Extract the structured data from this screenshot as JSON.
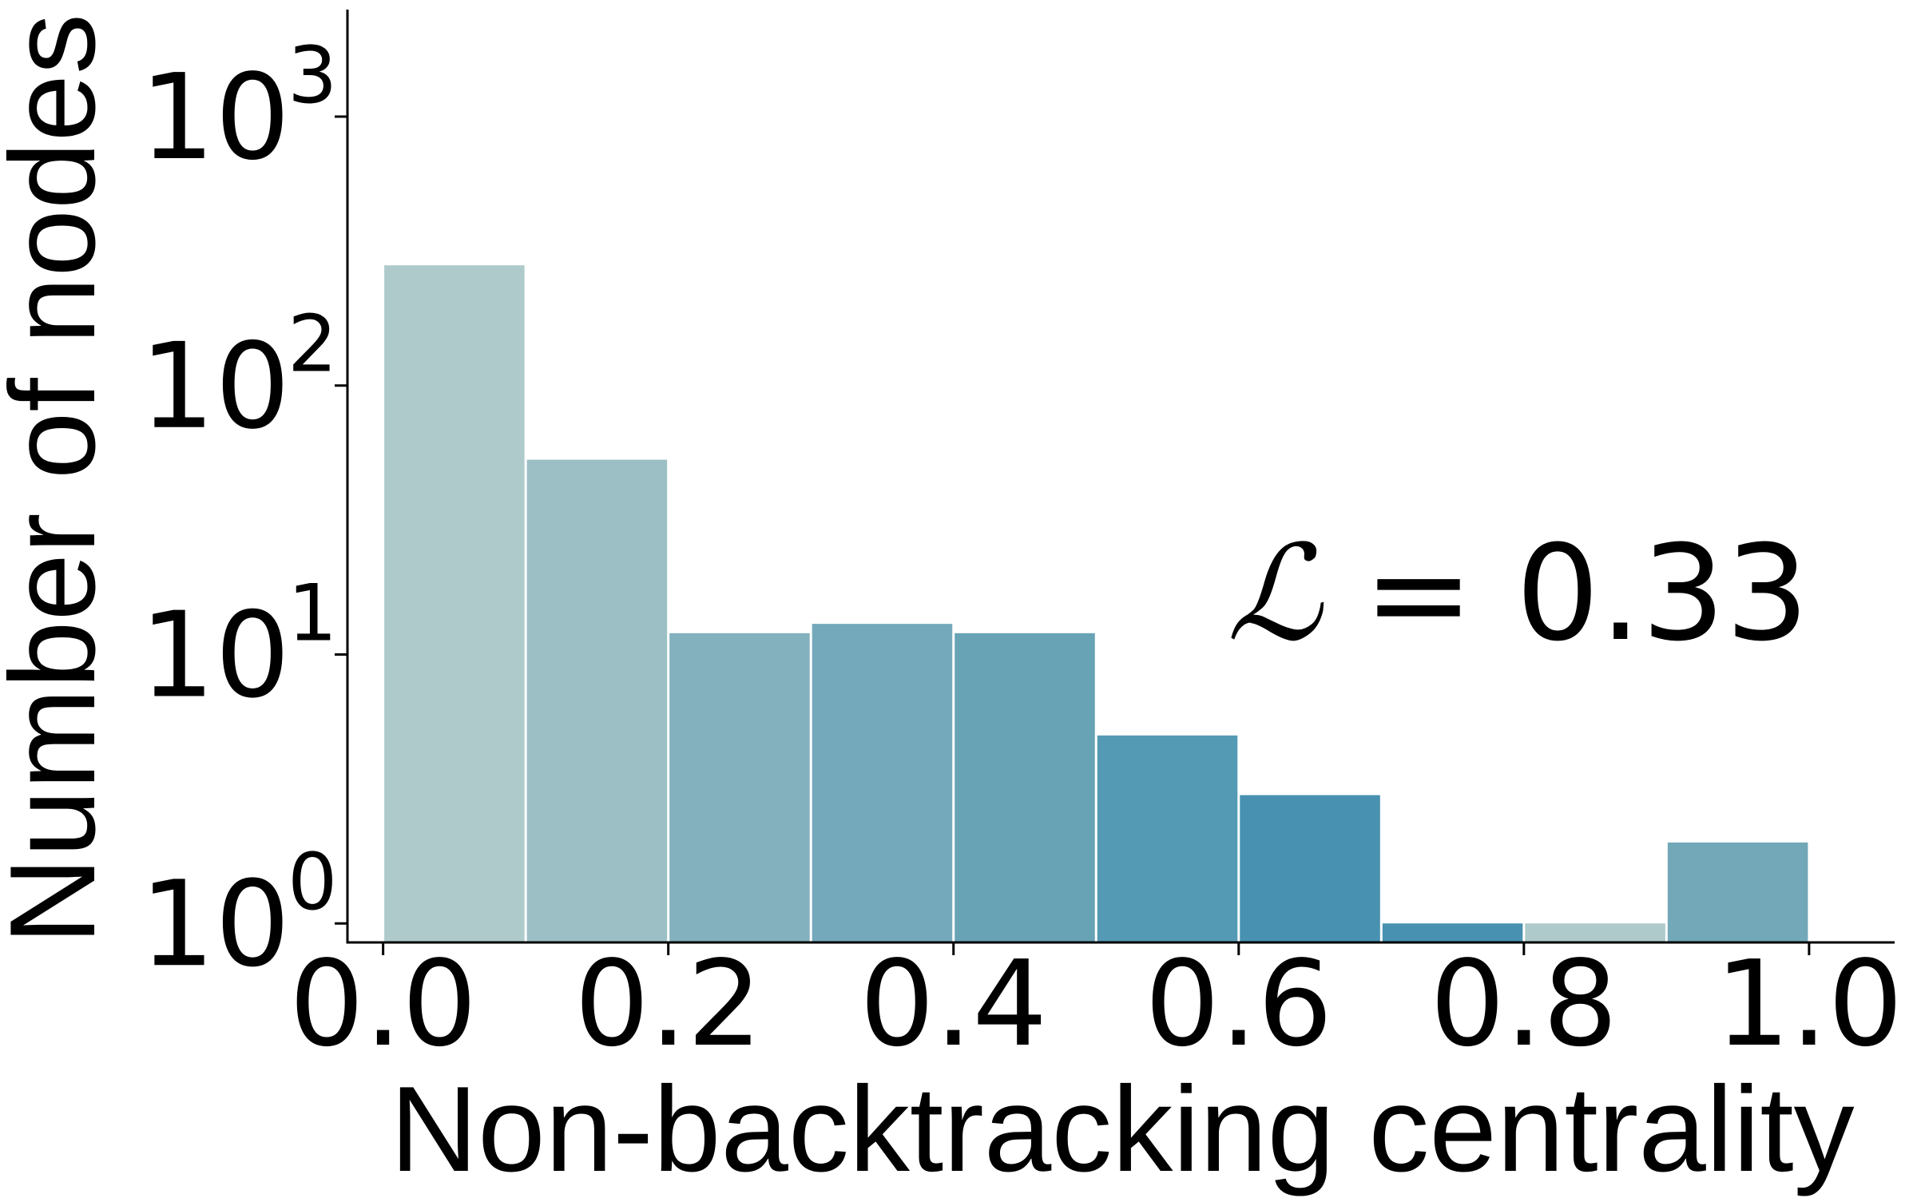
{
  "chart_data": {
    "type": "bar",
    "xlabel": "Non-backtracking centrality",
    "ylabel": "Number of nodes",
    "yscale": "log",
    "xlim": [
      -0.025,
      1.06
    ],
    "ylim": [
      0.85,
      2500
    ],
    "x_ticks": [
      0.0,
      0.2,
      0.4,
      0.6,
      0.8,
      1.0
    ],
    "x_tick_labels": [
      "0.0",
      "0.2",
      "0.4",
      "0.6",
      "0.8",
      "1.0"
    ],
    "y_ticks": [
      {
        "value": 1,
        "base": "10",
        "exp": "0"
      },
      {
        "value": 10,
        "base": "10",
        "exp": "1"
      },
      {
        "value": 100,
        "base": "10",
        "exp": "2"
      },
      {
        "value": 1000,
        "base": "10",
        "exp": "3"
      }
    ],
    "bins": [
      {
        "left": 0.0,
        "right": 0.1,
        "value": 280,
        "color": "#aecaca"
      },
      {
        "left": 0.1,
        "right": 0.2,
        "value": 53,
        "color": "#9bbfc5"
      },
      {
        "left": 0.2,
        "right": 0.3,
        "value": 12,
        "color": "#83b1bd"
      },
      {
        "left": 0.3,
        "right": 0.4,
        "value": 13,
        "color": "#74a9bb"
      },
      {
        "left": 0.4,
        "right": 0.5,
        "value": 12,
        "color": "#68a3b5"
      },
      {
        "left": 0.5,
        "right": 0.6,
        "value": 5,
        "color": "#549ab4"
      },
      {
        "left": 0.6,
        "right": 0.7,
        "value": 3,
        "color": "#4891b1"
      },
      {
        "left": 0.7,
        "right": 0.8,
        "value": 1,
        "color": "#4891b1"
      },
      {
        "left": 0.8,
        "right": 0.9,
        "value": 1,
        "color": "#aecaca"
      },
      {
        "left": 0.9,
        "right": 1.0,
        "value": 2,
        "color": "#72a8b8"
      }
    ],
    "annotation": {
      "symbol": "ℒ",
      "text": " = 0.33"
    },
    "grid": false,
    "legend": "none"
  }
}
